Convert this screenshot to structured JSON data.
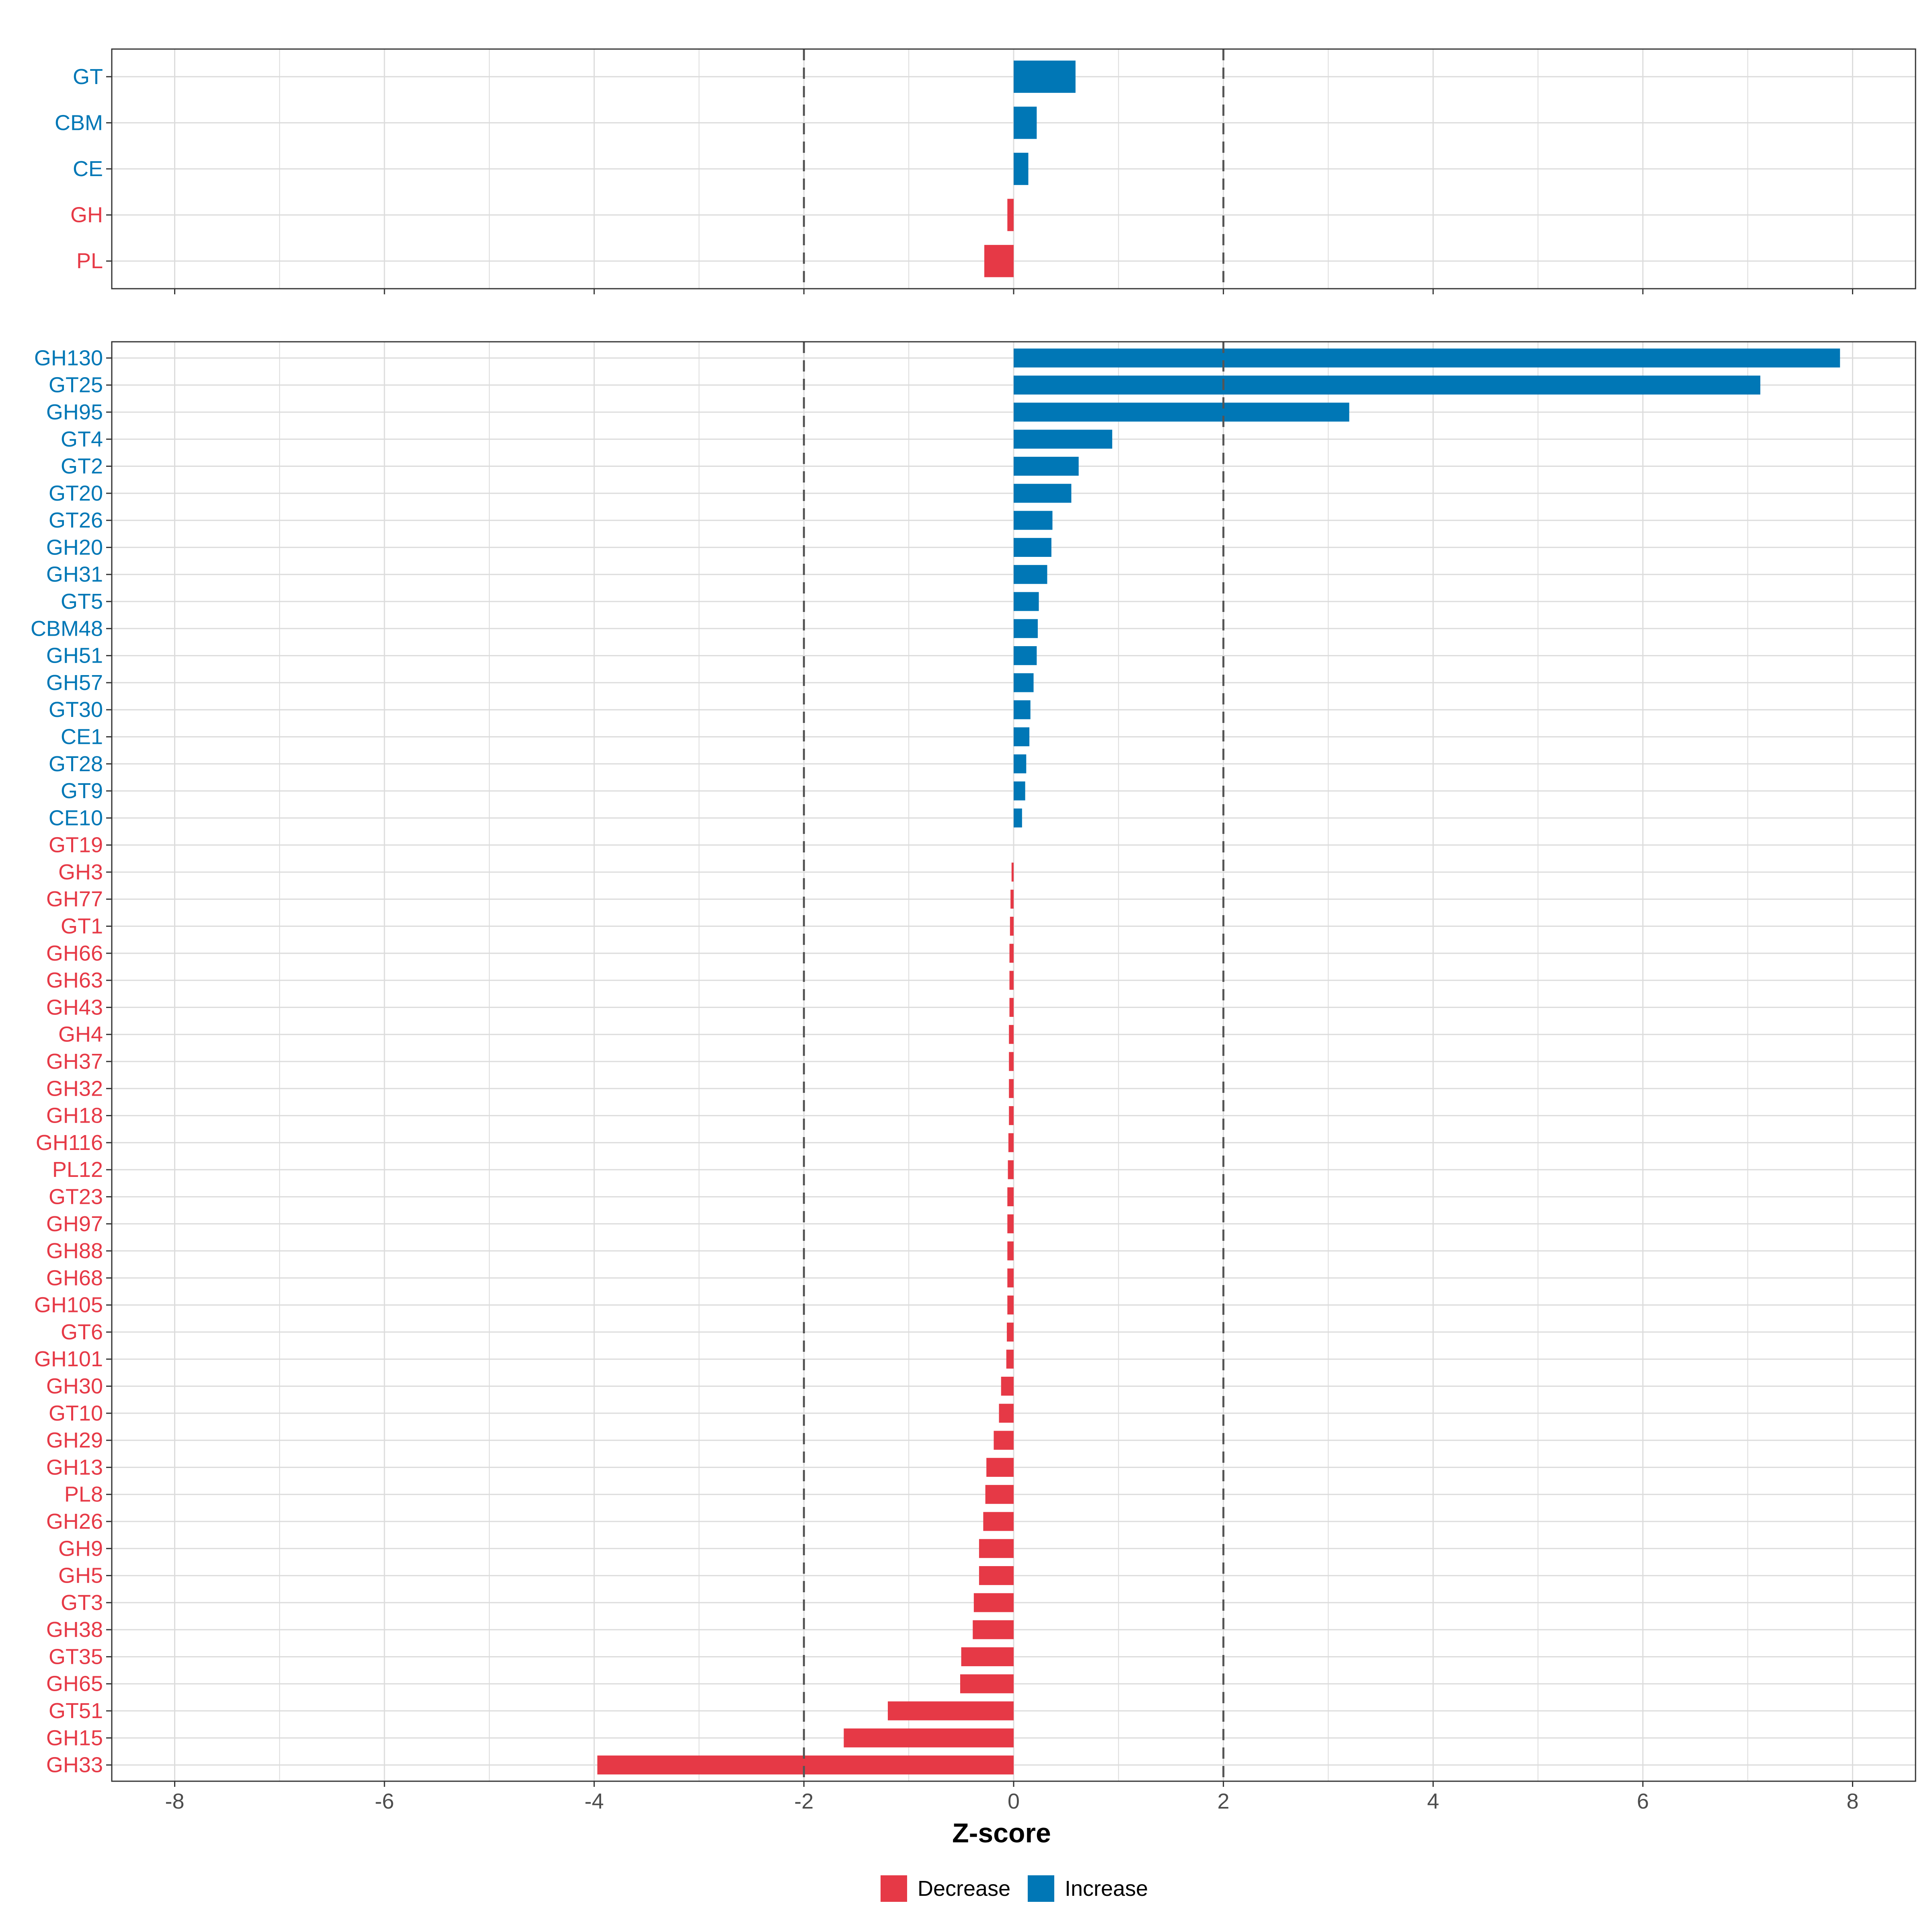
{
  "chart_data": [
    {
      "type": "bar",
      "orientation": "horizontal",
      "panel": "top",
      "categories": [
        "GT",
        "CBM",
        "CE",
        "GH",
        "PL"
      ],
      "values": [
        0.59,
        0.22,
        0.14,
        -0.06,
        -0.28
      ],
      "xlim": [
        -8.6,
        8.6
      ],
      "reference_lines": [
        -2,
        2
      ]
    },
    {
      "type": "bar",
      "orientation": "horizontal",
      "panel": "bottom",
      "categories": [
        "GH130",
        "GT25",
        "GH95",
        "GT4",
        "GT2",
        "GT20",
        "GT26",
        "GH20",
        "GH31",
        "GT5",
        "CBM48",
        "GH51",
        "GH57",
        "GT30",
        "CE1",
        "GT28",
        "GT9",
        "CE10",
        "GT19",
        "GH3",
        "GH77",
        "GT1",
        "GH66",
        "GH63",
        "GH43",
        "GH4",
        "GH37",
        "GH32",
        "GH18",
        "GH116",
        "PL12",
        "GT23",
        "GH97",
        "GH88",
        "GH68",
        "GH105",
        "GT6",
        "GH101",
        "GH30",
        "GT10",
        "GH29",
        "GH13",
        "PL8",
        "GH26",
        "GH9",
        "GH5",
        "GT3",
        "GH38",
        "GT35",
        "GH65",
        "GT51",
        "GH15",
        "GH33"
      ],
      "values": [
        7.88,
        7.12,
        3.2,
        0.94,
        0.62,
        0.55,
        0.37,
        0.36,
        0.32,
        0.24,
        0.23,
        0.22,
        0.19,
        0.16,
        0.15,
        0.12,
        0.11,
        0.08,
        0.0,
        -0.02,
        -0.03,
        -0.035,
        -0.04,
        -0.04,
        -0.04,
        -0.045,
        -0.045,
        -0.045,
        -0.045,
        -0.05,
        -0.055,
        -0.06,
        -0.06,
        -0.06,
        -0.06,
        -0.06,
        -0.065,
        -0.07,
        -0.12,
        -0.14,
        -0.19,
        -0.26,
        -0.27,
        -0.29,
        -0.33,
        -0.33,
        -0.38,
        -0.39,
        -0.5,
        -0.51,
        -1.2,
        -1.62,
        -3.97
      ],
      "xlim": [
        -8.6,
        8.6
      ],
      "xticks": [
        -8,
        -6,
        -4,
        -2,
        0,
        2,
        4,
        6,
        8
      ],
      "xtick_labels": [
        "-8",
        "-6",
        "-4",
        "-2",
        "0",
        "2",
        "4",
        "6",
        "8"
      ],
      "reference_lines": [
        -2,
        2
      ],
      "xlabel": "Z-score"
    }
  ],
  "legend": {
    "position": "bottom",
    "items": [
      {
        "label": "Decrease",
        "color": "#e63946"
      },
      {
        "label": "Increase",
        "color": "#0077b6"
      }
    ]
  },
  "colors": {
    "increase": "#0077b6",
    "decrease": "#e63946",
    "grid": "#dcdcdc",
    "axis_text": "#4d4d4d",
    "reference_line": "#555555"
  }
}
